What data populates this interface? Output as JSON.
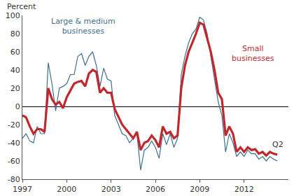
{
  "chart_data": {
    "type": "line",
    "ylabel": "Percent",
    "x": [
      1997.0,
      1997.25,
      1997.5,
      1997.75,
      1998.0,
      1998.25,
      1998.5,
      1998.75,
      1999.0,
      1999.25,
      1999.5,
      1999.75,
      2000.0,
      2000.25,
      2000.5,
      2000.75,
      2001.0,
      2001.25,
      2001.5,
      2001.75,
      2002.0,
      2002.25,
      2002.5,
      2002.75,
      2003.0,
      2003.25,
      2003.5,
      2003.75,
      2004.0,
      2004.25,
      2004.5,
      2004.75,
      2005.0,
      2005.25,
      2005.5,
      2005.75,
      2006.0,
      2006.25,
      2006.5,
      2006.75,
      2007.0,
      2007.25,
      2007.5,
      2007.75,
      2008.0,
      2008.25,
      2008.5,
      2008.75,
      2009.0,
      2009.25,
      2009.5,
      2009.75,
      2010.0,
      2010.25,
      2010.5,
      2010.75,
      2011.0,
      2011.25,
      2011.5,
      2011.75,
      2012.0,
      2012.25,
      2012.5,
      2012.75,
      2013.0,
      2013.25,
      2013.5,
      2013.75,
      2014.0,
      2014.25
    ],
    "series": [
      {
        "name": "Large & medium businesses",
        "color": "#3f6f8f",
        "line_style": "solid",
        "values": [
          -35,
          -30,
          -38,
          -40,
          -22,
          -30,
          -30,
          48,
          25,
          -5,
          20,
          22,
          25,
          35,
          35,
          55,
          58,
          45,
          55,
          60,
          45,
          22,
          42,
          30,
          28,
          -10,
          -20,
          -30,
          -32,
          -40,
          -35,
          -30,
          -70,
          -48,
          -45,
          -38,
          -45,
          -57,
          -30,
          -42,
          -30,
          -45,
          -35,
          35,
          55,
          70,
          80,
          85,
          98,
          95,
          80,
          55,
          30,
          5,
          -10,
          -50,
          -30,
          -40,
          -55,
          -50,
          -55,
          -48,
          -52,
          -52,
          -58,
          -55,
          -60,
          -55,
          -58,
          -60
        ]
      },
      {
        "name": "Small businesses",
        "color": "#c0282d",
        "line_style": "solid",
        "values": [
          -10,
          -12,
          -22,
          -30,
          -25,
          -25,
          -28,
          20,
          8,
          2,
          5,
          -2,
          10,
          18,
          25,
          27,
          28,
          22,
          36,
          40,
          38,
          15,
          20,
          15,
          15,
          -3,
          -12,
          -20,
          -25,
          -30,
          -35,
          -28,
          -48,
          -40,
          -38,
          -32,
          -37,
          -45,
          -22,
          -30,
          -28,
          -35,
          -32,
          20,
          45,
          60,
          70,
          80,
          92,
          90,
          75,
          60,
          40,
          15,
          8,
          -32,
          -22,
          -30,
          -50,
          -45,
          -50,
          -45,
          -48,
          -47,
          -52,
          -50,
          -54,
          -50,
          -52,
          -53
        ]
      }
    ],
    "annotations": [
      {
        "lines": [
          "Large & medium",
          "businesses"
        ],
        "x": 2001.1,
        "y": 88,
        "color": "#3f6f8f"
      },
      {
        "lines": [
          "Small",
          "businesses"
        ],
        "x": 2012.6,
        "y": 58,
        "color": "#c0282d"
      },
      {
        "lines": [
          "Q2"
        ],
        "x": 2014.3,
        "y": -42,
        "color": "#333333"
      }
    ],
    "xlim": [
      1997,
      2015
    ],
    "xticks": [
      1997,
      2000,
      2003,
      2006,
      2009,
      2012
    ],
    "ylim": [
      -80,
      100
    ],
    "yticks": [
      -80,
      -60,
      -40,
      -20,
      0,
      20,
      40,
      60,
      80,
      100
    ],
    "grid": false
  }
}
